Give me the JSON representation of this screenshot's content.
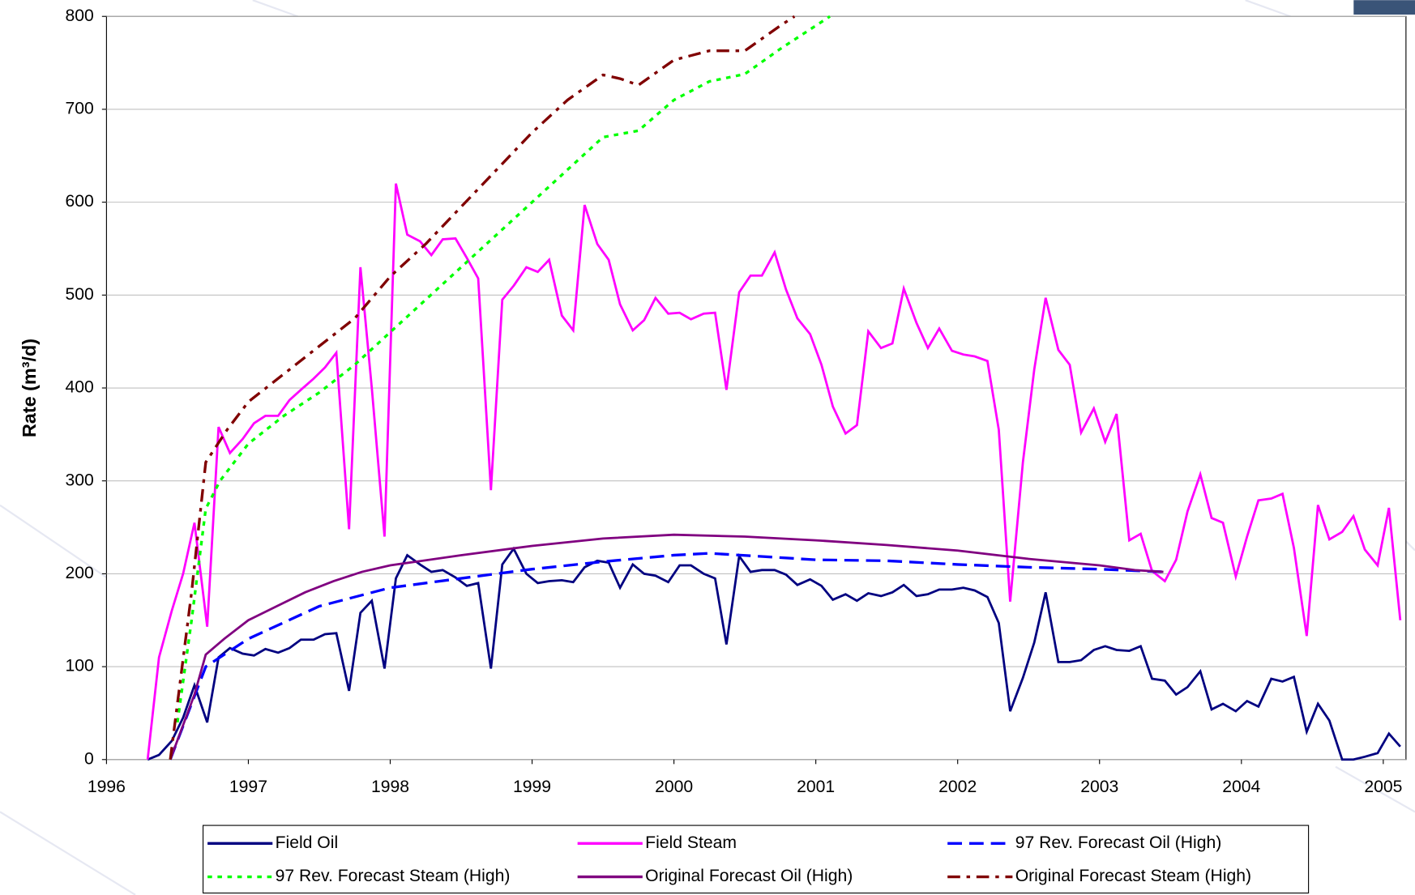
{
  "chart_data": {
    "type": "line",
    "y_label": "Rate (m³/d)",
    "xlim": [
      1996,
      2005.16
    ],
    "xticks": [
      1996,
      1997,
      1998,
      1999,
      2000,
      2001,
      2002,
      2003,
      2004,
      2005
    ],
    "ylim": [
      0,
      800
    ],
    "yticks": [
      0,
      100,
      200,
      300,
      400,
      500,
      600,
      700,
      800
    ],
    "grid": true,
    "legend": "bottom",
    "x": [
      1996.29,
      1996.37,
      1996.46,
      1996.54,
      1996.62,
      1996.71,
      1996.79,
      1996.87,
      1996.96,
      1997.04,
      1997.12,
      1997.21,
      1997.29,
      1997.37,
      1997.46,
      1997.54,
      1997.62,
      1997.71,
      1997.79,
      1997.87,
      1997.96,
      1998.04,
      1998.12,
      1998.21,
      1998.29,
      1998.37,
      1998.46,
      1998.54,
      1998.62,
      1998.71,
      1998.79,
      1998.87,
      1998.96,
      1999.04,
      1999.12,
      1999.21,
      1999.29,
      1999.37,
      1999.46,
      1999.54,
      1999.62,
      1999.71,
      1999.79,
      1999.87,
      1999.96,
      2000.04,
      2000.12,
      2000.21,
      2000.29,
      2000.37,
      2000.46,
      2000.54,
      2000.62,
      2000.71,
      2000.79,
      2000.87,
      2000.96,
      2001.04,
      2001.12,
      2001.21,
      2001.29,
      2001.37,
      2001.46,
      2001.54,
      2001.62,
      2001.71,
      2001.79,
      2001.87,
      2001.96,
      2002.04,
      2002.12,
      2002.21,
      2002.29,
      2002.37,
      2002.46,
      2002.54,
      2002.62,
      2002.71,
      2002.79,
      2002.87,
      2002.96,
      2003.04,
      2003.12,
      2003.21,
      2003.29,
      2003.37,
      2003.46,
      2003.54,
      2003.62,
      2003.71,
      2003.79,
      2003.87,
      2003.96,
      2004.04,
      2004.12,
      2004.21,
      2004.29,
      2004.37,
      2004.46,
      2004.54,
      2004.62,
      2004.71,
      2004.79,
      2004.87,
      2004.96,
      2005.04,
      2005.12
    ],
    "series": [
      {
        "name": "Field Oil",
        "color": "#000080",
        "dash": "solid",
        "values": [
          0,
          5,
          20,
          45,
          80,
          40,
          110,
          120,
          114,
          112,
          119,
          115,
          120,
          129,
          129,
          135,
          136,
          74,
          158,
          171,
          98,
          195,
          220,
          210,
          202,
          204,
          196,
          187,
          190,
          98,
          210,
          227,
          200,
          190,
          192,
          193,
          191,
          207,
          214,
          212,
          185,
          210,
          200,
          198,
          191,
          209,
          209,
          200,
          195,
          124,
          219,
          202,
          204,
          204,
          199,
          188,
          194,
          187,
          172,
          178,
          171,
          179,
          176,
          180,
          188,
          176,
          178,
          183,
          183,
          185,
          182,
          175,
          147,
          52,
          88,
          126,
          180,
          105,
          105,
          107,
          118,
          122,
          118,
          117,
          122,
          87,
          85,
          70,
          78,
          95,
          54,
          60,
          52,
          63,
          57,
          87,
          84,
          89,
          30,
          60,
          42,
          0,
          0,
          3,
          7,
          28,
          14
        ]
      },
      {
        "name": "Field Steam",
        "color": "#ff00ff",
        "dash": "solid",
        "values": [
          0,
          110,
          160,
          200,
          255,
          143,
          358,
          330,
          345,
          362,
          370,
          370,
          387,
          398,
          410,
          422,
          438,
          248,
          530,
          400,
          240,
          620,
          565,
          558,
          543,
          560,
          561,
          540,
          518,
          290,
          495,
          510,
          530,
          525,
          538,
          478,
          462,
          597,
          555,
          538,
          490,
          462,
          473,
          497,
          480,
          481,
          474,
          480,
          481,
          398,
          503,
          521,
          521,
          546,
          506,
          475,
          458,
          425,
          380,
          351,
          360,
          461,
          443,
          448,
          507,
          470,
          443,
          464,
          440,
          436,
          434,
          429,
          355,
          170,
          320,
          420,
          497,
          441,
          425,
          352,
          378,
          342,
          372,
          236,
          243,
          203,
          192,
          215,
          267,
          307,
          260,
          255,
          197,
          240,
          279,
          281,
          286,
          228,
          133,
          274,
          237,
          245,
          262,
          226,
          209,
          271,
          150
        ]
      },
      {
        "name": "97 Rev. Forecast Oil (High)",
        "color": "#0000ff",
        "dash": "dash",
        "x": [
          1996.45,
          1996.7,
          1997,
          1997.5,
          1998,
          1998.5,
          1999,
          1999.5,
          2000,
          2000.25,
          2001,
          2001.5,
          2002,
          2002.5,
          2003,
          2003.45
        ],
        "values": [
          0,
          100,
          130,
          165,
          185,
          195,
          205,
          213,
          220,
          222,
          215,
          214,
          210,
          207,
          205,
          202
        ]
      },
      {
        "name": "97 Rev. Forecast Steam (High)",
        "color": "#00ff00",
        "dash": "dot",
        "x": [
          1996.5,
          1996.6,
          1996.7,
          1996.8,
          1997,
          1997.25,
          1997.5,
          1997.75,
          1998,
          1998.5,
          1999,
          1999.25,
          1999.5,
          1999.75,
          2000,
          2000.25,
          2000.5,
          2000.75,
          2001,
          2001.1
        ],
        "values": [
          40,
          150,
          270,
          300,
          340,
          370,
          395,
          425,
          460,
          530,
          600,
          635,
          670,
          677,
          710,
          730,
          738,
          765,
          790,
          800
        ]
      },
      {
        "name": "Original Forecast Oil (High)",
        "color": "#800080",
        "dash": "solid",
        "x": [
          1996.45,
          1996.62,
          1996.7,
          1996.83,
          1997,
          1997.2,
          1997.4,
          1997.6,
          1997.8,
          1998,
          1998.5,
          1999,
          1999.5,
          2000,
          2000.5,
          2001,
          2001.5,
          2002,
          2002.5,
          2003,
          2003.25,
          2003.45
        ],
        "values": [
          0,
          70,
          113,
          130,
          150,
          165,
          180,
          192,
          202,
          209,
          220,
          230,
          238,
          242,
          240,
          236,
          231,
          225,
          216,
          209,
          204,
          202
        ]
      },
      {
        "name": "Original Forecast Steam (High)",
        "color": "#800000",
        "dash": "dashdot",
        "x": [
          1996.45,
          1996.6,
          1996.7,
          1996.85,
          1997,
          1997.25,
          1997.5,
          1997.75,
          1998,
          1998.25,
          1998.5,
          1998.75,
          1999,
          1999.25,
          1999.5,
          1999.62,
          1999.75,
          2000,
          2000.25,
          2000.5,
          2000.75,
          2000.85
        ],
        "values": [
          0,
          180,
          320,
          355,
          385,
          415,
          445,
          475,
          520,
          555,
          595,
          635,
          675,
          710,
          737,
          733,
          726,
          753,
          763,
          763,
          790,
          800
        ]
      }
    ]
  }
}
